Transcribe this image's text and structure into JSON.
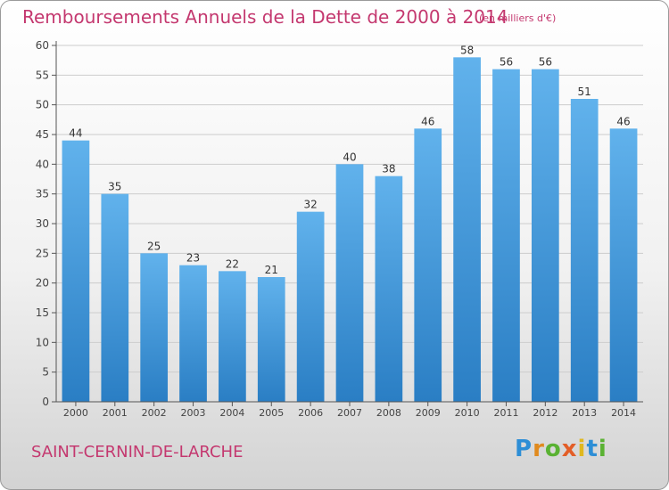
{
  "header": {
    "title": "Remboursements Annuels de la Dette de 2000 à 2014",
    "subtitle": "(en milliers d'€)"
  },
  "footer": {
    "commune": "SAINT-CERNIN-DE-LARCHE",
    "logo": "Proxiti"
  },
  "colors": {
    "title": "#c4386f",
    "bar_light": "#61b2ec",
    "bar_dark": "#2a7ec4",
    "axis": "#555555",
    "grid": "#cccccc"
  },
  "chart_data": {
    "type": "bar",
    "title": "Remboursements Annuels de la Dette de 2000 à 2014",
    "subtitle": "(en milliers d'€)",
    "categories": [
      "2000",
      "2001",
      "2002",
      "2003",
      "2004",
      "2005",
      "2006",
      "2007",
      "2008",
      "2009",
      "2010",
      "2011",
      "2012",
      "2013",
      "2014"
    ],
    "values": [
      44,
      35,
      25,
      23,
      22,
      21,
      32,
      40,
      38,
      46,
      58,
      56,
      56,
      51,
      46
    ],
    "ylim": [
      0,
      60
    ],
    "yticks": [
      0,
      5,
      10,
      15,
      20,
      25,
      30,
      35,
      40,
      45,
      50,
      55,
      60
    ],
    "grid": true,
    "data_labels": true
  }
}
